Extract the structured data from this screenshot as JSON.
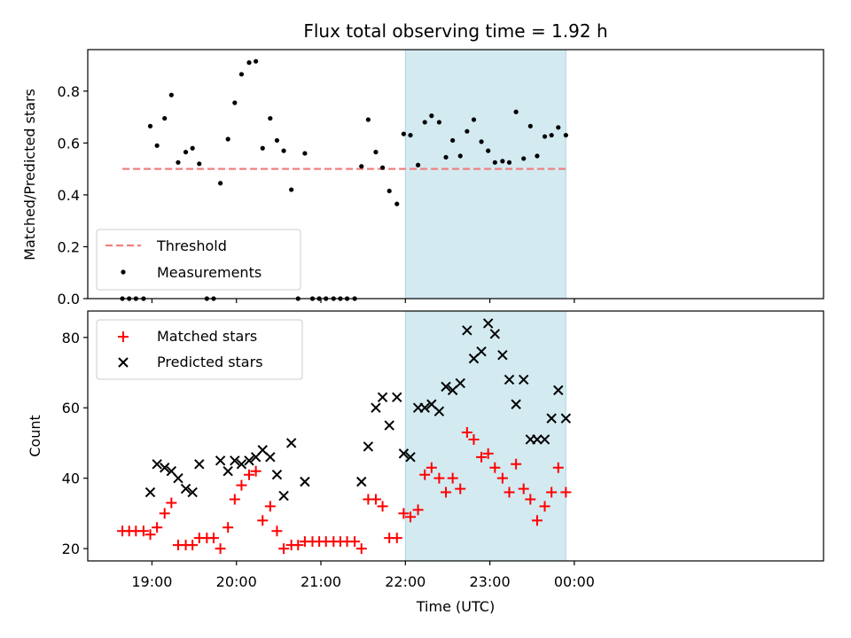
{
  "chart_data": {
    "title": "Flux total observing time = 1.92 h",
    "xlabel": "Time (UTC)",
    "x_ticks": [
      "19:00",
      "20:00",
      "21:00",
      "22:00",
      "23:00",
      "00:00"
    ],
    "x_tick_hours": [
      19,
      20,
      21,
      22,
      23,
      24
    ],
    "xlim": [
      18.24,
      26.95
    ],
    "highlight_span": [
      22.0,
      23.9
    ],
    "highlight_color": "#d3eaf1",
    "panels": [
      {
        "type": "scatter",
        "ylabel": "Matched/Predicted stars",
        "ylim": [
          0.0,
          0.96
        ],
        "y_ticks": [
          0.0,
          0.2,
          0.4,
          0.6,
          0.8
        ],
        "y_tick_labels": [
          "0.0",
          "0.2",
          "0.4",
          "0.6",
          "0.8"
        ],
        "legend_position": "lower-left",
        "threshold": {
          "name": "Threshold",
          "value": 0.5,
          "x_range": [
            18.65,
            23.9
          ],
          "color": "#f08080"
        },
        "series": [
          {
            "name": "Measurements",
            "color": "#000000",
            "marker": "dot",
            "x": [
              18.65,
              18.73,
              18.81,
              18.9,
              18.98,
              19.06,
              19.15,
              19.23,
              19.31,
              19.4,
              19.48,
              19.56,
              19.65,
              19.73,
              19.81,
              19.9,
              19.98,
              20.06,
              20.15,
              20.23,
              20.31,
              20.4,
              20.48,
              20.56,
              20.65,
              20.73,
              20.81,
              20.9,
              20.98,
              21.06,
              21.15,
              21.23,
              21.31,
              21.4,
              21.48,
              21.56,
              21.65,
              21.73,
              21.81,
              21.9,
              21.98,
              22.06,
              22.15,
              22.23,
              22.31,
              22.4,
              22.48,
              22.56,
              22.65,
              22.73,
              22.81,
              22.9,
              22.98,
              23.06,
              23.15,
              23.23,
              23.31,
              23.4,
              23.48,
              23.56,
              23.65,
              23.73,
              23.81,
              23.9
            ],
            "y": [
              0.0,
              0.0,
              0.0,
              0.0,
              0.665,
              0.59,
              0.695,
              0.785,
              0.525,
              0.565,
              0.58,
              0.52,
              0.0,
              0.0,
              0.445,
              0.615,
              0.755,
              0.865,
              0.91,
              0.915,
              0.58,
              0.695,
              0.61,
              0.57,
              0.42,
              0.0,
              0.56,
              0.0,
              0.0,
              0.0,
              0.0,
              0.0,
              0.0,
              0.0,
              0.51,
              0.69,
              0.565,
              0.505,
              0.415,
              0.365,
              0.635,
              0.63,
              0.515,
              0.68,
              0.705,
              0.68,
              0.545,
              0.61,
              0.55,
              0.645,
              0.69,
              0.605,
              0.57,
              0.525,
              0.53,
              0.525,
              0.72,
              0.54,
              0.665,
              0.55,
              0.625,
              0.63,
              0.66,
              0.63
            ]
          }
        ]
      },
      {
        "type": "scatter",
        "ylabel": "Count",
        "ylim": [
          16.5,
          87.5
        ],
        "y_ticks": [
          20,
          40,
          60,
          80
        ],
        "y_tick_labels": [
          "20",
          "40",
          "60",
          "80"
        ],
        "legend_position": "upper-left",
        "series": [
          {
            "name": "Matched stars",
            "color": "#ff0000",
            "marker": "plus",
            "x": [
              18.65,
              18.73,
              18.81,
              18.9,
              18.98,
              19.06,
              19.15,
              19.23,
              19.31,
              19.4,
              19.48,
              19.56,
              19.65,
              19.73,
              19.81,
              19.9,
              19.98,
              20.06,
              20.15,
              20.23,
              20.31,
              20.4,
              20.48,
              20.56,
              20.65,
              20.73,
              20.81,
              20.9,
              20.98,
              21.06,
              21.15,
              21.23,
              21.31,
              21.4,
              21.48,
              21.56,
              21.65,
              21.73,
              21.81,
              21.9,
              21.98,
              22.06,
              22.15,
              22.23,
              22.31,
              22.4,
              22.48,
              22.56,
              22.65,
              22.73,
              22.81,
              22.9,
              22.98,
              23.06,
              23.15,
              23.23,
              23.31,
              23.4,
              23.48,
              23.56,
              23.65,
              23.73,
              23.81,
              23.9
            ],
            "y": [
              25,
              25,
              25,
              25,
              24,
              26,
              30,
              33,
              21,
              21,
              21,
              23,
              23,
              23,
              20,
              26,
              34,
              38,
              41,
              42,
              28,
              32,
              25,
              20,
              21,
              21,
              22,
              22,
              22,
              22,
              22,
              22,
              22,
              22,
              20,
              34,
              34,
              32,
              23,
              23,
              30,
              29,
              31,
              41,
              43,
              40,
              36,
              40,
              37,
              53,
              51,
              46,
              47,
              43,
              40,
              36,
              44,
              37,
              34,
              28,
              32,
              36,
              43,
              36
            ]
          },
          {
            "name": "Predicted stars",
            "color": "#000000",
            "marker": "x",
            "x": [
              18.98,
              19.06,
              19.15,
              19.23,
              19.31,
              19.4,
              19.48,
              19.56,
              19.81,
              19.9,
              19.98,
              20.06,
              20.15,
              20.23,
              20.31,
              20.4,
              20.48,
              20.56,
              20.65,
              20.81,
              21.48,
              21.56,
              21.65,
              21.73,
              21.81,
              21.9,
              21.98,
              22.06,
              22.15,
              22.23,
              22.31,
              22.4,
              22.48,
              22.56,
              22.65,
              22.73,
              22.81,
              22.9,
              22.98,
              23.06,
              23.15,
              23.23,
              23.31,
              23.4,
              23.48,
              23.56,
              23.65,
              23.73,
              23.81,
              23.9
            ],
            "y": [
              36,
              44,
              43,
              42,
              40,
              37,
              36,
              44,
              45,
              42,
              45,
              44,
              45,
              46,
              48,
              46,
              41,
              35,
              50,
              39,
              39,
              49,
              60,
              63,
              55,
              63,
              47,
              46,
              60,
              60,
              61,
              59,
              66,
              65,
              67,
              82,
              74,
              76,
              84,
              81,
              75,
              68,
              61,
              68,
              51,
              51,
              51,
              57,
              65,
              57
            ]
          }
        ]
      }
    ]
  }
}
